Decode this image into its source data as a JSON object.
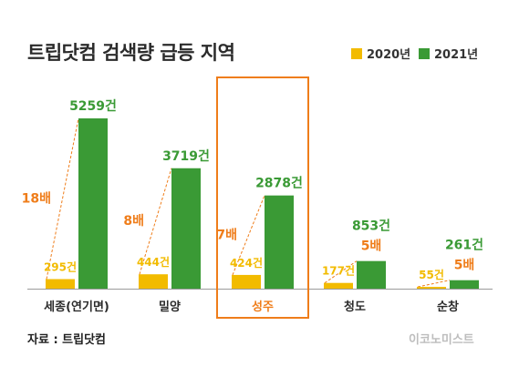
{
  "title": "트립닷컴 검색량 급등 지역",
  "source": "자료 : 트립닷컴",
  "brand": "이코노미스트",
  "colors": {
    "s2020": "#f2bb00",
    "s2021": "#3a9a35",
    "ratio": "#ef7d1a",
    "category": "#2b2b2b",
    "highlight_category": "#ef7d1a",
    "highlight_box": "#ef7d1a"
  },
  "chart_data": {
    "type": "bar",
    "title": "트립닷컴 검색량 급등 지역",
    "categories": [
      "세종(연기면)",
      "밀양",
      "성주",
      "청도",
      "순창"
    ],
    "series": [
      {
        "name": "2020년",
        "values": [
          295,
          444,
          424,
          177,
          55
        ],
        "labels": [
          "295건",
          "444건",
          "424건",
          "177건",
          "55건"
        ]
      },
      {
        "name": "2021년",
        "values": [
          5259,
          3719,
          2878,
          853,
          261
        ],
        "labels": [
          "5259건",
          "3719건",
          "2878건",
          "853건",
          "261건"
        ]
      }
    ],
    "ratios": [
      "18배",
      "8배",
      "7배",
      "5배",
      "5배"
    ],
    "highlight": "성주",
    "legend_position": "top-right",
    "grid": false,
    "ylim": [
      0,
      5259
    ]
  }
}
